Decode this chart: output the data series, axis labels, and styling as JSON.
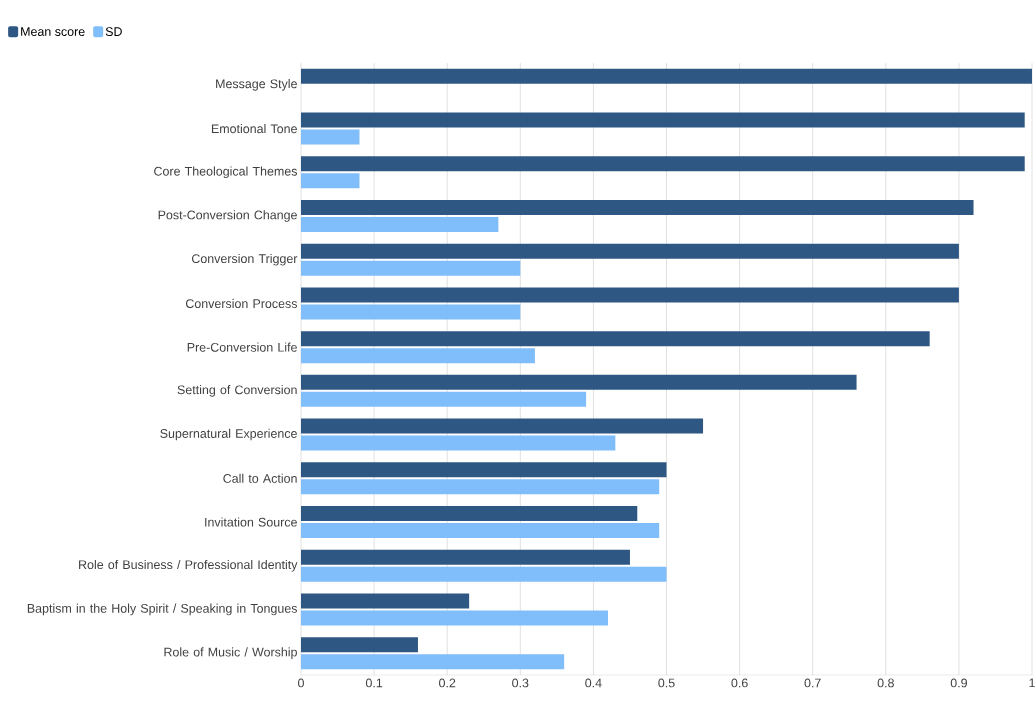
{
  "chart_data": {
    "type": "bar",
    "orientation": "horizontal",
    "legend": "top left",
    "grid": "x",
    "categories": [
      "Message Style",
      "Emotional Tone",
      "Core Theological Themes",
      "Post-Conversion Change",
      "Conversion Trigger",
      "Conversion Process",
      "Pre-Conversion Life",
      "Setting of Conversion",
      "Supernatural Experience",
      "Call to Action",
      "Invitation Source",
      "Role of Business / Professional Identity",
      "Baptism in the Holy Spirit / Speaking in Tongues",
      "Role of Music / Worship"
    ],
    "series": [
      {
        "name": "Mean score",
        "color": "#2e5784",
        "values": [
          1.0,
          0.99,
          0.99,
          0.92,
          0.9,
          0.9,
          0.86,
          0.76,
          0.55,
          0.5,
          0.46,
          0.45,
          0.23,
          0.16
        ]
      },
      {
        "name": "SD",
        "color": "#80bdfb",
        "values": [
          0,
          0.08,
          0.08,
          0.27,
          0.3,
          0.3,
          0.32,
          0.39,
          0.43,
          0.49,
          0.49,
          0.5,
          0.42,
          0.36
        ]
      }
    ],
    "xlim": [
      0,
      1
    ],
    "xticks": [
      0,
      0.1,
      0.2,
      0.3,
      0.4,
      0.5,
      0.6,
      0.7,
      0.8,
      0.9,
      1
    ]
  }
}
